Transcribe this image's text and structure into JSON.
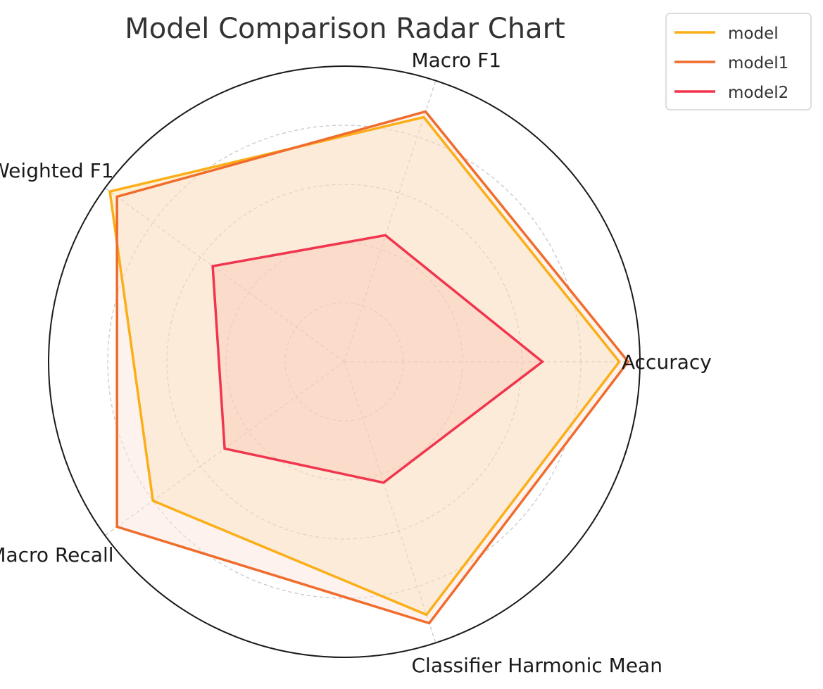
{
  "chart_data": {
    "type": "radar",
    "title": "Model Comparison Radar Chart",
    "axes": [
      "Accuracy",
      "Macro F1",
      "Weighted F1",
      "Macro Recall",
      "Classifier Harmonic Mean"
    ],
    "rlim": [
      0,
      1
    ],
    "grid": true,
    "legend_position": "top-right",
    "series": [
      {
        "name": "model",
        "color": "#FBAE17",
        "fill": "#FBAE17",
        "values": [
          0.93,
          0.87,
          0.98,
          0.8,
          0.9
        ]
      },
      {
        "name": "model1",
        "color": "#EF6C2D",
        "fill": "#FCE6DE",
        "values": [
          0.96,
          0.89,
          0.95,
          0.95,
          0.93
        ]
      },
      {
        "name": "model2",
        "color": "#F0364F",
        "fill": "#F8C4B4",
        "values": [
          0.67,
          0.45,
          0.55,
          0.5,
          0.43
        ]
      }
    ]
  }
}
